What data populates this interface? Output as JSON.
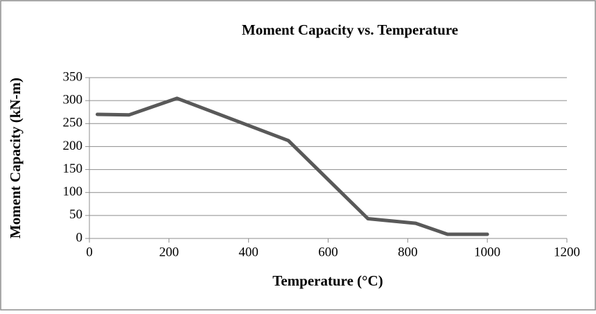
{
  "chart_data": {
    "type": "line",
    "title": "Moment Capacity vs. Temperature",
    "x_label": "Temperature (°C)",
    "y_label": "Moment Capacity (kN-m)",
    "x": [
      20,
      100,
      220,
      500,
      700,
      820,
      900,
      1000
    ],
    "series": [
      {
        "name": "Moment Capacity",
        "color": "#595959",
        "values": [
          270,
          269,
          305,
          213,
          43,
          33,
          9,
          9
        ]
      }
    ],
    "xlim": [
      0,
      1200
    ],
    "xticks": [
      0,
      200,
      400,
      600,
      800,
      1000,
      1200
    ],
    "ylim": [
      0,
      350
    ],
    "yticks": [
      0,
      50,
      100,
      150,
      200,
      250,
      300,
      350
    ],
    "grid": true
  }
}
